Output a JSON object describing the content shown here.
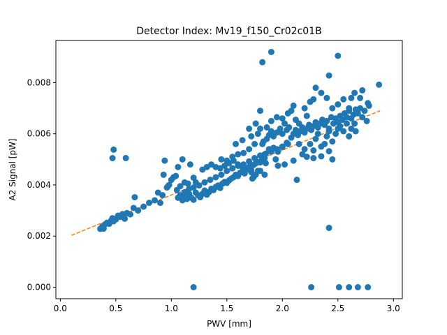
{
  "chart_data": {
    "type": "scatter",
    "title": "Detector Index: Mv19_f150_Cr02c01B",
    "xlabel": "PWV [mm]",
    "ylabel": "A2 Signal [pW]",
    "xlim": [
      -0.04,
      3.08
    ],
    "ylim": [
      -0.00045,
      0.00965
    ],
    "x_ticks": [
      0.0,
      0.5,
      1.0,
      1.5,
      2.0,
      2.5,
      3.0
    ],
    "x_tick_labels": [
      "0.0",
      "0.5",
      "1.0",
      "1.5",
      "2.0",
      "2.5",
      "3.0"
    ],
    "y_ticks": [
      0.0,
      0.002,
      0.004,
      0.006,
      0.008
    ],
    "y_tick_labels": [
      "0.000",
      "0.002",
      "0.004",
      "0.006",
      "0.008"
    ],
    "colors": {
      "points": "#1f77b4",
      "fit": "#ff7f0e"
    },
    "series": [
      {
        "name": "data",
        "style": "markers",
        "points": [
          [
            0.36,
            0.00228
          ],
          [
            0.37,
            0.00232
          ],
          [
            0.38,
            0.00238
          ],
          [
            0.39,
            0.00229
          ],
          [
            0.4,
            0.00245
          ],
          [
            0.42,
            0.00252
          ],
          [
            0.44,
            0.00248
          ],
          [
            0.46,
            0.00262
          ],
          [
            0.47,
            0.0027
          ],
          [
            0.48,
            0.00258
          ],
          [
            0.5,
            0.00265
          ],
          [
            0.52,
            0.0028
          ],
          [
            0.54,
            0.00275
          ],
          [
            0.56,
            0.00286
          ],
          [
            0.58,
            0.00268
          ],
          [
            0.6,
            0.0029
          ],
          [
            0.63,
            0.00285
          ],
          [
            0.66,
            0.0031
          ],
          [
            0.7,
            0.003
          ],
          [
            0.75,
            0.00315
          ],
          [
            0.47,
            0.00505
          ],
          [
            0.48,
            0.00538
          ],
          [
            0.59,
            0.00505
          ],
          [
            0.67,
            0.00352
          ],
          [
            0.8,
            0.0033
          ],
          [
            0.85,
            0.0034
          ],
          [
            0.88,
            0.0037
          ],
          [
            0.9,
            0.0033
          ],
          [
            0.92,
            0.0036
          ],
          [
            0.93,
            0.0044
          ],
          [
            0.94,
            0.00495
          ],
          [
            0.96,
            0.0039
          ],
          [
            0.97,
            0.00395
          ],
          [
            0.98,
            0.004
          ],
          [
            1.0,
            0.0042
          ],
          [
            1.02,
            0.0043
          ],
          [
            1.05,
            0.0038
          ],
          [
            1.08,
            0.00395
          ],
          [
            1.1,
            0.005
          ],
          [
            1.12,
            0.0041
          ],
          [
            1.15,
            0.00405
          ],
          [
            1.17,
            0.0048
          ],
          [
            1.2,
            0.00428
          ],
          [
            1.22,
            0.0041
          ],
          [
            1.04,
            0.00435
          ],
          [
            1.06,
            0.0047
          ],
          [
            1.06,
            0.0035
          ],
          [
            1.08,
            0.0036
          ],
          [
            1.1,
            0.0034
          ],
          [
            1.12,
            0.00355
          ],
          [
            1.14,
            0.00345
          ],
          [
            1.16,
            0.00365
          ],
          [
            1.18,
            0.0035
          ],
          [
            1.2,
            0.00342
          ],
          [
            1.22,
            0.0037
          ],
          [
            1.24,
            0.0036
          ],
          [
            1.26,
            0.00352
          ],
          [
            1.28,
            0.00365
          ],
          [
            1.3,
            0.00378
          ],
          [
            1.32,
            0.00362
          ],
          [
            1.34,
            0.00372
          ],
          [
            1.36,
            0.00385
          ],
          [
            1.38,
            0.0038
          ],
          [
            1.4,
            0.00392
          ],
          [
            1.42,
            0.00398
          ],
          [
            1.44,
            0.00388
          ],
          [
            1.46,
            0.00405
          ],
          [
            1.48,
            0.00412
          ],
          [
            1.5,
            0.00408
          ],
          [
            1.52,
            0.00418
          ],
          [
            1.54,
            0.00425
          ],
          [
            1.56,
            0.0043
          ],
          [
            1.58,
            0.0044
          ],
          [
            1.6,
            0.00435
          ],
          [
            1.62,
            0.00448
          ],
          [
            1.64,
            0.00452
          ],
          [
            1.66,
            0.00445
          ],
          [
            1.68,
            0.00462
          ],
          [
            1.7,
            0.0047
          ],
          [
            1.72,
            0.00458
          ],
          [
            1.74,
            0.00478
          ],
          [
            1.76,
            0.00484
          ],
          [
            1.78,
            0.0049
          ],
          [
            1.8,
            0.00488
          ],
          [
            1.82,
            0.005
          ],
          [
            1.84,
            0.00505
          ],
          [
            1.12,
            0.00372
          ],
          [
            1.16,
            0.00385
          ],
          [
            1.2,
            0.0039
          ],
          [
            1.25,
            0.00398
          ],
          [
            1.3,
            0.0041
          ],
          [
            1.35,
            0.0042
          ],
          [
            1.4,
            0.0043
          ],
          [
            1.45,
            0.0044
          ],
          [
            1.5,
            0.00455
          ],
          [
            1.55,
            0.00465
          ],
          [
            1.6,
            0.00475
          ],
          [
            1.65,
            0.0048
          ],
          [
            1.7,
            0.00492
          ],
          [
            1.75,
            0.00505
          ],
          [
            1.8,
            0.00515
          ],
          [
            1.85,
            0.00522
          ],
          [
            1.9,
            0.0053
          ],
          [
            1.95,
            0.0054
          ],
          [
            2.0,
            0.00548
          ],
          [
            2.05,
            0.0056
          ],
          [
            1.28,
            0.0046
          ],
          [
            1.32,
            0.0047
          ],
          [
            1.36,
            0.0048
          ],
          [
            1.4,
            0.0047
          ],
          [
            1.44,
            0.00465
          ],
          [
            1.48,
            0.00475
          ],
          [
            1.52,
            0.00485
          ],
          [
            1.56,
            0.00495
          ],
          [
            1.6,
            0.0048
          ],
          [
            1.64,
            0.0047
          ],
          [
            1.68,
            0.0046
          ],
          [
            1.72,
            0.0045
          ],
          [
            1.76,
            0.0044
          ],
          [
            1.8,
            0.00455
          ],
          [
            1.84,
            0.0052
          ],
          [
            1.88,
            0.00535
          ],
          [
            1.92,
            0.00545
          ],
          [
            1.96,
            0.0053
          ],
          [
            2.0,
            0.0055
          ],
          [
            2.04,
            0.00565
          ],
          [
            1.45,
            0.005
          ],
          [
            1.5,
            0.00495
          ],
          [
            1.55,
            0.0051
          ],
          [
            1.6,
            0.0052
          ],
          [
            1.65,
            0.00525
          ],
          [
            1.7,
            0.0054
          ],
          [
            1.75,
            0.0056
          ],
          [
            1.78,
            0.006
          ],
          [
            1.8,
            0.0062
          ],
          [
            1.83,
            0.0057
          ],
          [
            1.86,
            0.0058
          ],
          [
            1.88,
            0.00595
          ],
          [
            1.9,
            0.0061
          ],
          [
            1.92,
            0.0059
          ],
          [
            1.95,
            0.00605
          ],
          [
            1.98,
            0.0062
          ],
          [
            2.0,
            0.006
          ],
          [
            2.02,
            0.0064
          ],
          [
            2.04,
            0.00615
          ],
          [
            2.06,
            0.00625
          ],
          [
            2.08,
            0.00585
          ],
          [
            2.1,
            0.006
          ],
          [
            2.12,
            0.00615
          ],
          [
            2.14,
            0.00595
          ],
          [
            2.16,
            0.0061
          ],
          [
            2.18,
            0.00625
          ],
          [
            2.2,
            0.00605
          ],
          [
            2.22,
            0.0062
          ],
          [
            2.24,
            0.00635
          ],
          [
            2.26,
            0.00615
          ],
          [
            2.28,
            0.0063
          ],
          [
            2.3,
            0.00645
          ],
          [
            2.32,
            0.00625
          ],
          [
            2.34,
            0.0064
          ],
          [
            2.36,
            0.00655
          ],
          [
            2.38,
            0.00635
          ],
          [
            2.4,
            0.0065
          ],
          [
            2.42,
            0.0062
          ],
          [
            2.44,
            0.00665
          ],
          [
            2.46,
            0.0064
          ],
          [
            2.48,
            0.0066
          ],
          [
            2.5,
            0.00645
          ],
          [
            2.52,
            0.0067
          ],
          [
            2.54,
            0.00655
          ],
          [
            2.56,
            0.0068
          ],
          [
            2.58,
            0.00665
          ],
          [
            2.6,
            0.0069
          ],
          [
            2.62,
            0.0066
          ],
          [
            2.64,
            0.00675
          ],
          [
            2.66,
            0.00695
          ],
          [
            2.68,
            0.0068
          ],
          [
            2.7,
            0.007
          ],
          [
            2.72,
            0.00665
          ],
          [
            2.74,
            0.0069
          ],
          [
            2.76,
            0.0065
          ],
          [
            2.78,
            0.0071
          ],
          [
            2.55,
            0.0061
          ],
          [
            2.6,
            0.0059
          ],
          [
            2.65,
            0.0064
          ],
          [
            2.5,
            0.0062
          ],
          [
            2.2,
            0.0054
          ],
          [
            2.25,
            0.0056
          ],
          [
            2.3,
            0.0058
          ],
          [
            2.35,
            0.0055
          ],
          [
            2.4,
            0.0059
          ],
          [
            2.45,
            0.0057
          ],
          [
            2.18,
            0.0052
          ],
          [
            2.28,
            0.00535
          ],
          [
            2.38,
            0.0056
          ],
          [
            2.15,
            0.0056
          ],
          [
            2.32,
            0.006
          ],
          [
            2.42,
            0.0061
          ],
          [
            2.45,
            0.005
          ],
          [
            2.42,
            0.00532
          ],
          [
            2.35,
            0.00512
          ],
          [
            2.48,
            0.006
          ],
          [
            2.52,
            0.0063
          ],
          [
            2.58,
            0.0064
          ],
          [
            2.62,
            0.0062
          ],
          [
            2.66,
            0.0061
          ],
          [
            1.82,
            0.0088
          ],
          [
            1.9,
            0.0092
          ],
          [
            2.5,
            0.00905
          ],
          [
            2.42,
            0.00828
          ],
          [
            2.25,
            0.00725
          ],
          [
            2.3,
            0.0078
          ],
          [
            2.35,
            0.0076
          ],
          [
            2.45,
            0.007
          ],
          [
            2.05,
            0.0068
          ],
          [
            2.1,
            0.0071
          ],
          [
            2.2,
            0.007
          ],
          [
            1.95,
            0.00665
          ],
          [
            1.8,
            0.0069
          ],
          [
            2.55,
            0.00735
          ],
          [
            2.62,
            0.0074
          ],
          [
            2.72,
            0.0077
          ],
          [
            2.87,
            0.00792
          ],
          [
            2.77,
            0.0072
          ],
          [
            2.7,
            0.0074
          ],
          [
            2.65,
            0.0076
          ],
          [
            2.4,
            0.0074
          ],
          [
            2.28,
            0.00735
          ],
          [
            2.15,
            0.0064
          ],
          [
            2.0,
            0.0066
          ],
          [
            1.9,
            0.0065
          ],
          [
            2.6,
            0.007
          ],
          [
            2.5,
            0.00715
          ],
          [
            2.12,
            0.00655
          ],
          [
            2.22,
            0.0067
          ],
          [
            2.08,
            0.0069
          ],
          [
            1.76,
            0.0064
          ],
          [
            1.86,
            0.00625
          ],
          [
            1.72,
            0.0059
          ],
          [
            1.64,
            0.00575
          ],
          [
            1.58,
            0.0056
          ],
          [
            1.7,
            0.0062
          ],
          [
            1.82,
            0.0056
          ],
          [
            1.88,
            0.0054
          ],
          [
            1.94,
            0.005
          ],
          [
            2.02,
            0.0048
          ],
          [
            2.13,
            0.0042
          ],
          [
            2.22,
            0.0051
          ],
          [
            2.28,
            0.00505
          ],
          [
            2.1,
            0.00495
          ],
          [
            1.96,
            0.00475
          ],
          [
            1.84,
            0.0044
          ],
          [
            1.73,
            0.00425
          ],
          [
            1.74,
            0.0043
          ],
          [
            1.78,
            0.00455
          ],
          [
            1.85,
            0.00485
          ],
          [
            1.2,
            0.0
          ],
          [
            2.26,
            0.0
          ],
          [
            2.51,
            0.0
          ],
          [
            2.6,
            0.0
          ],
          [
            2.68,
            0.0
          ],
          [
            2.77,
            0.0
          ],
          [
            2.42,
            0.00232
          ]
        ]
      },
      {
        "name": "fit",
        "style": "dashed-line",
        "x": [
          0.1,
          2.88
        ],
        "y": [
          0.00203,
          0.0069
        ]
      }
    ]
  }
}
